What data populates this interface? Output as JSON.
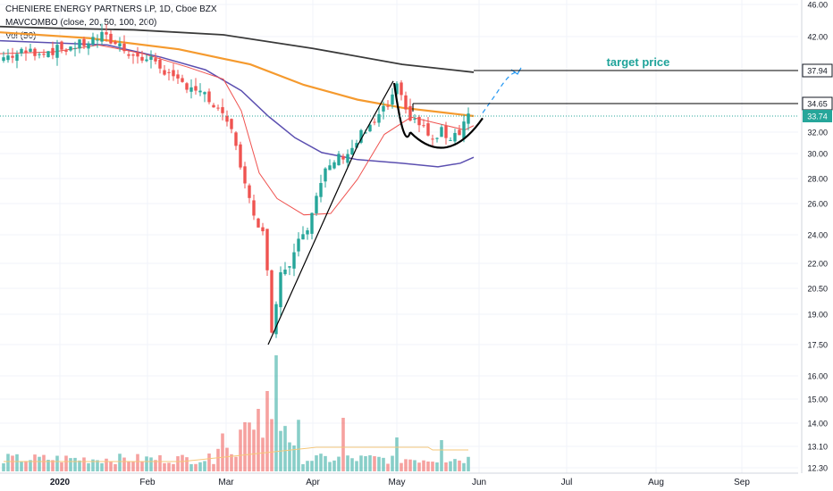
{
  "header": {
    "symbol_line": "CHENIERE ENERGY PARTNERS LP, 1D, Cboe BZX",
    "indicator_line": "MAVCOMBO (close, 20, 50, 100, 200)",
    "volume_line": "Vol (50)"
  },
  "colors": {
    "up": "#26a69a",
    "down": "#ef5350",
    "ma20": "#ef5350",
    "ma50": "#5b4fb0",
    "ma100": "#f59a2e",
    "ma200": "#3a3a3a",
    "annotation": "#2196f3",
    "target_text": "#1fa39a",
    "grid": "#f0f3fa"
  },
  "chart_data": {
    "type": "candlestick",
    "title": "CHENIERE ENERGY PARTNERS LP, 1D, Cboe BZX",
    "y_scale": "log",
    "y_tick_labels": [
      "46.00",
      "42.00",
      "37.94",
      "34.65",
      "33.74",
      "32.00",
      "30.00",
      "28.00",
      "26.00",
      "24.00",
      "22.00",
      "20.50",
      "19.00",
      "17.50",
      "16.00",
      "15.00",
      "14.00",
      "13.10",
      "12.30"
    ],
    "x_tick_labels": [
      "2020",
      "Feb",
      "Mar",
      "Apr",
      "May",
      "Jun",
      "Jul",
      "Aug",
      "Sep"
    ],
    "last_price": 33.74,
    "levels": [
      {
        "label": "37.94",
        "value": 37.94,
        "text": "target price"
      },
      {
        "label": "34.65",
        "value": 34.65
      }
    ],
    "moving_averages": [
      {
        "period": 20
      },
      {
        "period": 50
      },
      {
        "period": 100
      },
      {
        "period": 200
      }
    ],
    "ohlc_approx": [
      {
        "date": "Jan",
        "close": 40.5
      },
      {
        "date": "Feb",
        "close": 40.2
      },
      {
        "date": "Mar",
        "close": 34.5
      },
      {
        "date": "Mar 18",
        "close": 18.3
      },
      {
        "date": "Apr",
        "close": 26.0
      },
      {
        "date": "May 1",
        "close": 36.7
      },
      {
        "date": "May 20",
        "close": 31.5
      },
      {
        "date": "May 29",
        "close": 33.74
      }
    ]
  }
}
